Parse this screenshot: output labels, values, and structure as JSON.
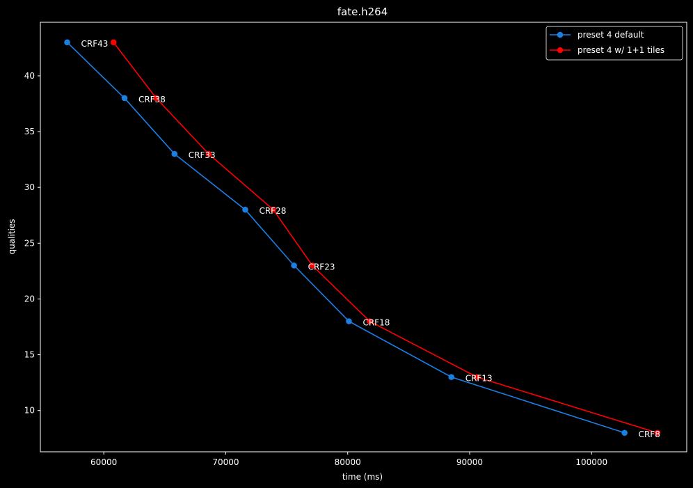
{
  "chart_data": {
    "type": "line",
    "title": "fate.h264",
    "xlabel": "time (ms)",
    "ylabel": "qualities",
    "xlim": [
      54800,
      107800
    ],
    "ylim": [
      6.3,
      44.8
    ],
    "xticks": [
      60000,
      70000,
      80000,
      90000,
      100000
    ],
    "xtick_labels": [
      "60000",
      "70000",
      "80000",
      "90000",
      "100000"
    ],
    "yticks": [
      10,
      15,
      20,
      25,
      30,
      35,
      40
    ],
    "ytick_labels": [
      "10",
      "15",
      "20",
      "25",
      "30",
      "35",
      "40"
    ],
    "grid": false,
    "legend_position": "top-right",
    "series": [
      {
        "name": "preset 4 default",
        "color": "#1a80e6",
        "marker": "circle",
        "points": [
          {
            "x": 57000,
            "y": 43
          },
          {
            "x": 61700,
            "y": 38
          },
          {
            "x": 65800,
            "y": 33
          },
          {
            "x": 71600,
            "y": 28
          },
          {
            "x": 75600,
            "y": 23
          },
          {
            "x": 80100,
            "y": 18
          },
          {
            "x": 88500,
            "y": 13
          },
          {
            "x": 102700,
            "y": 8
          }
        ]
      },
      {
        "name": "preset 4 w/ 1+1 tiles",
        "color": "#ff0000",
        "marker": "circle",
        "points": [
          {
            "x": 60800,
            "y": 43
          },
          {
            "x": 64300,
            "y": 38
          },
          {
            "x": 68600,
            "y": 33
          },
          {
            "x": 73900,
            "y": 28
          },
          {
            "x": 77100,
            "y": 23
          },
          {
            "x": 81800,
            "y": 18
          },
          {
            "x": 90600,
            "y": 13
          },
          {
            "x": 105400,
            "y": 8
          }
        ]
      }
    ],
    "annotations": [
      {
        "text": "CRF43",
        "x": 57000,
        "y": 43
      },
      {
        "text": "CRF38",
        "x": 61700,
        "y": 38
      },
      {
        "text": "CRF33",
        "x": 65800,
        "y": 33
      },
      {
        "text": "CRF28",
        "x": 71600,
        "y": 28
      },
      {
        "text": "CRF23",
        "x": 75600,
        "y": 23
      },
      {
        "text": "CRF18",
        "x": 80100,
        "y": 18
      },
      {
        "text": "CRF13",
        "x": 88500,
        "y": 13
      },
      {
        "text": "CRF8",
        "x": 102700,
        "y": 8
      }
    ]
  }
}
